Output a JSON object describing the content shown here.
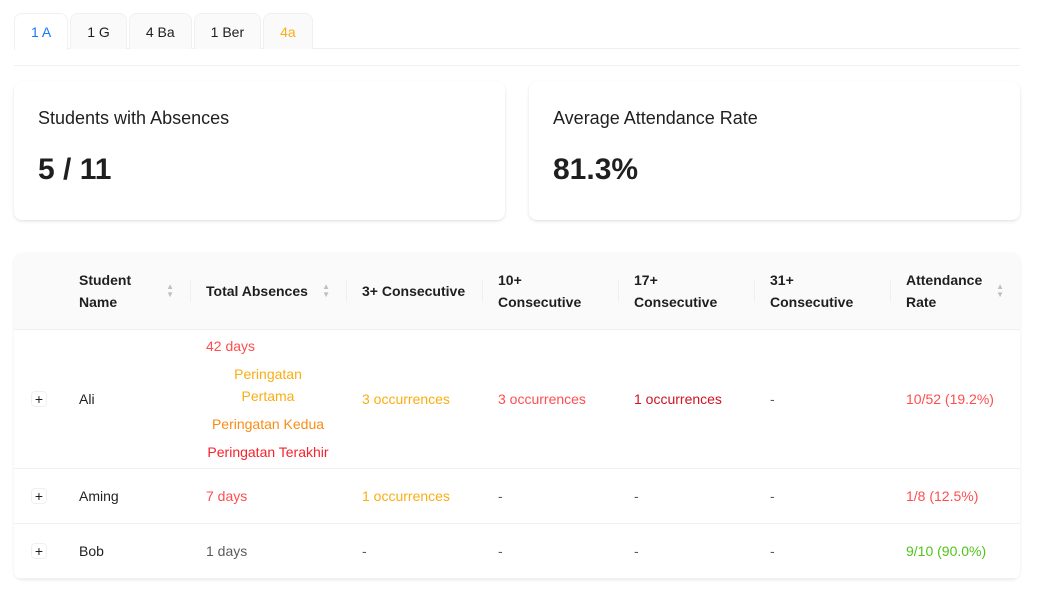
{
  "tabs": [
    {
      "label": "1 A"
    },
    {
      "label": "1 G"
    },
    {
      "label": "4 Ba"
    },
    {
      "label": "1 Ber"
    },
    {
      "label": "4a"
    }
  ],
  "cards": {
    "absences": {
      "title": "Students with Absences",
      "value": "5 / 11"
    },
    "attendance": {
      "title": "Average Attendance Rate",
      "value": "81.3%"
    }
  },
  "table": {
    "headers": {
      "name": "Student Name",
      "total": "Total Absences",
      "c3": "3+ Consecutive",
      "c10": "10+ Consecutive",
      "c17": "17+ Consecutive",
      "c31": "31+ Consecutive",
      "rate": "Attendance Rate"
    },
    "rows": [
      {
        "name": "Ali",
        "total": "42 days",
        "warnings": [
          "Peringatan Pertama",
          "Peringatan Kedua",
          "Peringatan Terakhir"
        ],
        "c3": "3 occurrences",
        "c10": "3 occurrences",
        "c17": "1 occurrences",
        "c31": "-",
        "rate": "10/52 (19.2%)"
      },
      {
        "name": "Aming",
        "total": "7 days",
        "c3": "1 occurrences",
        "c10": "-",
        "c17": "-",
        "c31": "-",
        "rate": "1/8 (12.5%)"
      },
      {
        "name": "Bob",
        "total": "1 days",
        "c3": "-",
        "c10": "-",
        "c17": "-",
        "c31": "-",
        "rate": "9/10 (90.0%)"
      }
    ]
  }
}
